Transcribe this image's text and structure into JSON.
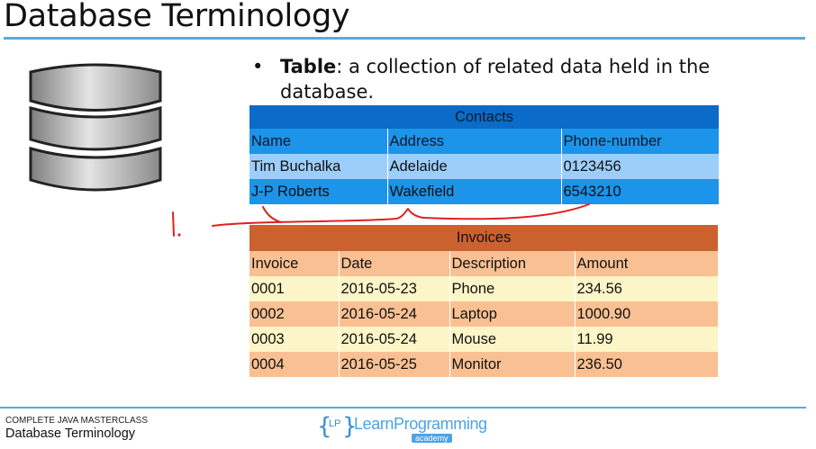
{
  "slide": {
    "title": "Database Terminology"
  },
  "bullet": {
    "marker": "•",
    "term": "Table",
    "definition": ": a collection of related data held in the database."
  },
  "contacts": {
    "caption": "Contacts",
    "columns": [
      "Name",
      "Address",
      "Phone-number"
    ],
    "rows": [
      [
        "Tim Buchalka",
        "Adelaide",
        "0123456"
      ],
      [
        "J-P Roberts",
        "Wakefield",
        "6543210"
      ]
    ]
  },
  "invoices": {
    "caption": "Invoices",
    "columns": [
      "Invoice",
      "Date",
      "Description",
      "Amount"
    ],
    "rows": [
      [
        "0001",
        "2016-05-23",
        "Phone",
        "234.56"
      ],
      [
        "0002",
        "2016-05-24",
        "Laptop",
        "1000.90"
      ],
      [
        "0003",
        "2016-05-24",
        "Mouse",
        "11.99"
      ],
      [
        "0004",
        "2016-05-25",
        "Monitor",
        "236.50"
      ]
    ]
  },
  "annotation": {
    "mark": "1.",
    "color": "#e02020"
  },
  "footer": {
    "course": "COMPLETE JAVA MASTERCLASS",
    "subtitle": "Database Terminology",
    "logo": {
      "brace_open": "{",
      "initials": "LP",
      "brace_close": "}",
      "wordmark": "LearnProgramming",
      "tagline": "academy"
    }
  },
  "colors": {
    "accent_rule": "#5aa9dd",
    "contacts_caption": "#0a6cc8",
    "contacts_header": "#1c94ea",
    "contacts_row_light": "#9dcefa",
    "invoices_caption": "#cc6130",
    "invoices_header": "#f9c193",
    "invoices_row_light": "#fcf5c7"
  }
}
